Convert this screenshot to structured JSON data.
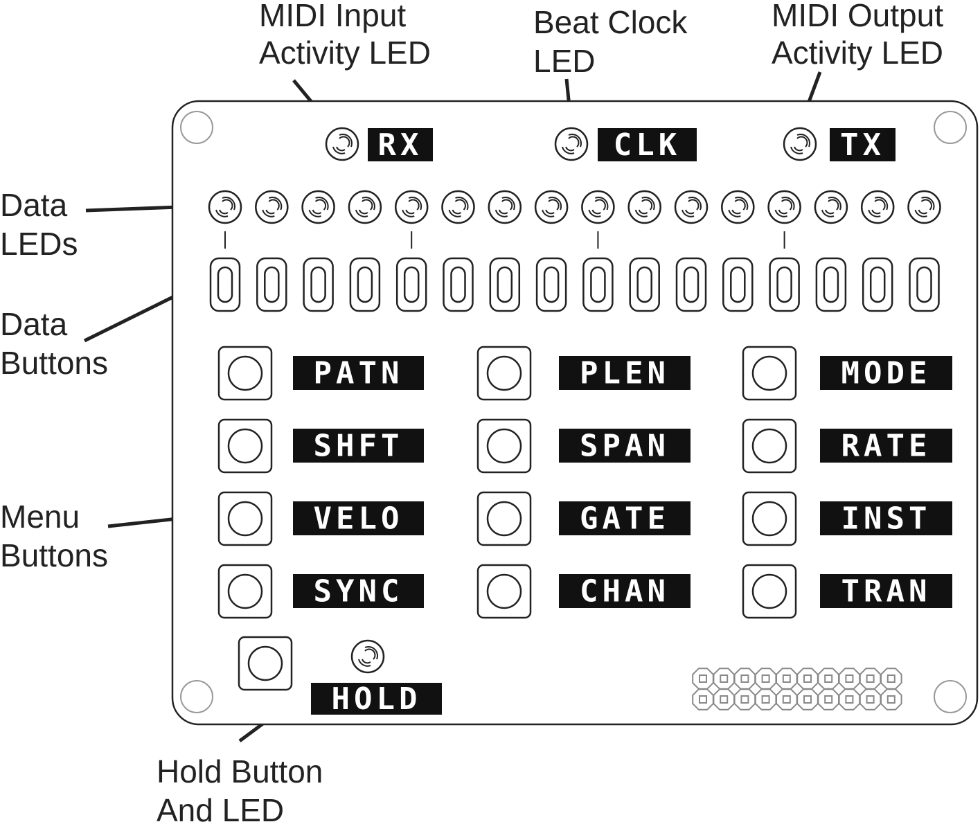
{
  "callouts": {
    "midi_input": [
      "MIDI Input",
      "Activity LED"
    ],
    "beat_clock": [
      "Beat Clock",
      "LED"
    ],
    "midi_output": [
      "MIDI Output",
      "Activity LED"
    ],
    "data_leds": [
      "Data",
      "LEDs"
    ],
    "data_buttons": [
      "Data",
      "Buttons"
    ],
    "menu_buttons": [
      "Menu",
      "Buttons"
    ],
    "hold": [
      "Hold Button",
      "And LED"
    ]
  },
  "status_leds": [
    "RX",
    "CLK",
    "TX"
  ],
  "data_led_count": 16,
  "data_button_count": 16,
  "data_buttons_marked": [
    1,
    5,
    9,
    13
  ],
  "menu_buttons": [
    [
      "PATN",
      "PLEN",
      "MODE"
    ],
    [
      "SHFT",
      "SPAN",
      "RATE"
    ],
    [
      "VELO",
      "GATE",
      "INST"
    ],
    [
      "SYNC",
      "CHAN",
      "TRAN"
    ]
  ],
  "hold_label": "HOLD",
  "header_pins": {
    "rows": 2,
    "cols": 10
  }
}
